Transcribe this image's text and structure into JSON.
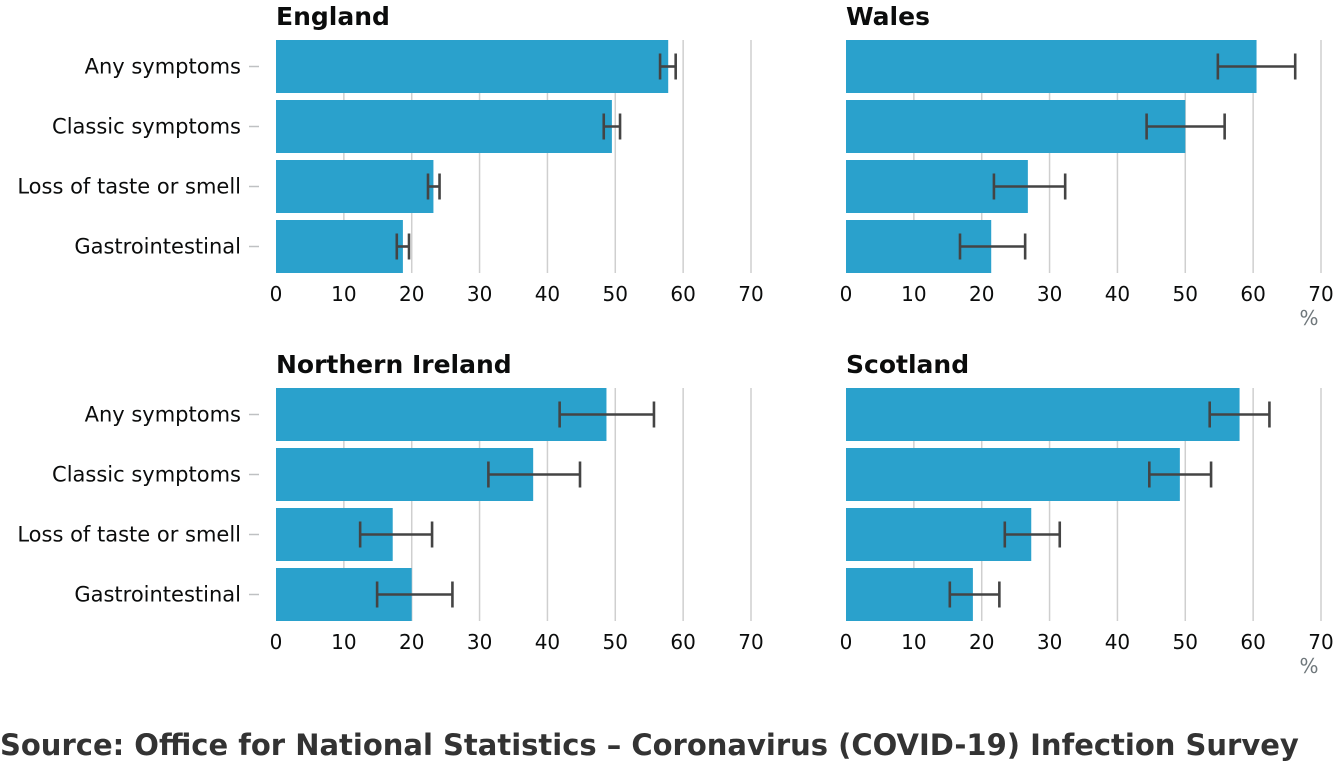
{
  "chart_data": {
    "type": "bar",
    "orientation": "horizontal",
    "error_bars": true,
    "unit": "%",
    "xlim": [
      0,
      70
    ],
    "xticks": [
      0,
      10,
      20,
      30,
      40,
      50,
      60,
      70
    ],
    "grid": true,
    "categories": [
      "Any symptoms",
      "Classic symptoms",
      "Loss of taste or smell",
      "Gastrointestinal"
    ],
    "colors": {
      "bar": "#2aa1cc",
      "error_bar": "#444444",
      "grid": "#cfcfcf"
    },
    "panels": [
      {
        "title": "England",
        "values": [
          57.8,
          49.5,
          23.2,
          18.7
        ],
        "lower": [
          56.6,
          48.3,
          22.4,
          17.8
        ],
        "upper": [
          58.9,
          50.7,
          24.1,
          19.6
        ],
        "show_unit": false
      },
      {
        "title": "Wales",
        "values": [
          60.5,
          50.0,
          26.8,
          21.4
        ],
        "lower": [
          54.8,
          44.3,
          21.8,
          16.8
        ],
        "upper": [
          66.2,
          55.8,
          32.3,
          26.4
        ],
        "show_unit": true
      },
      {
        "title": "Northern Ireland",
        "values": [
          48.7,
          37.9,
          17.2,
          20.0
        ],
        "lower": [
          41.8,
          31.3,
          12.4,
          14.9
        ],
        "upper": [
          55.7,
          44.8,
          23.0,
          26.0
        ],
        "show_unit": false
      },
      {
        "title": "Scotland",
        "values": [
          58.0,
          49.2,
          27.3,
          18.7
        ],
        "lower": [
          53.6,
          44.7,
          23.4,
          15.3
        ],
        "upper": [
          62.4,
          53.8,
          31.5,
          22.6
        ],
        "show_unit": true
      }
    ]
  },
  "source": "Source: Office for National Statistics – Coronavirus (COVID-19) Infection Survey"
}
